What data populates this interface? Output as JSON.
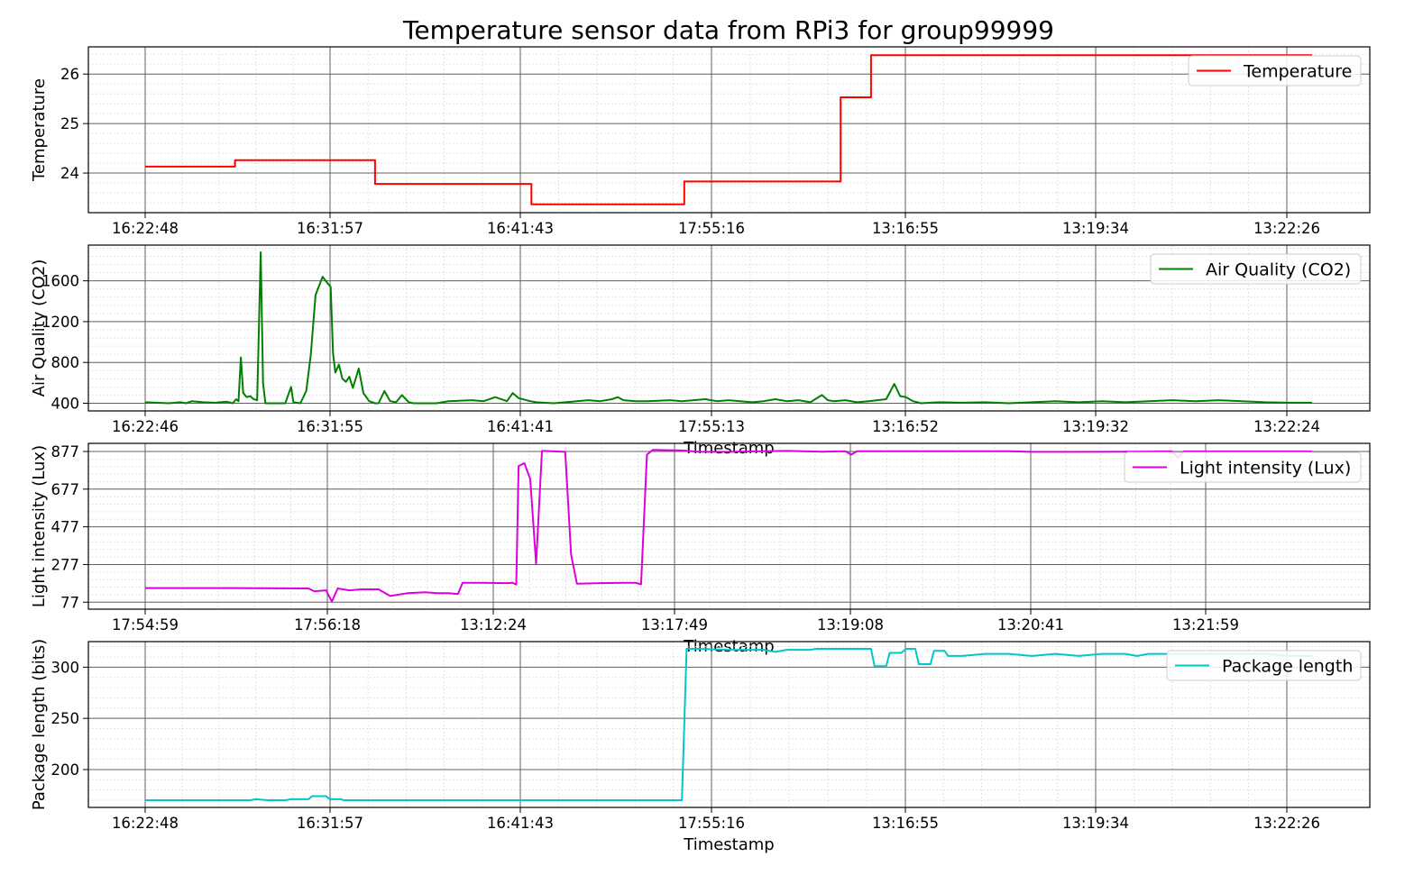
{
  "title": "Temperature sensor data from RPi3 for group99999",
  "chart_data": [
    {
      "type": "line",
      "ylabel": "Temperature",
      "xlabel": "",
      "color": "#ff0000",
      "series": [
        {
          "name": "Temperature"
        }
      ],
      "legend_position": "top-right",
      "grid": true,
      "x_ticks": [
        "16:22:48",
        "16:31:57",
        "16:41:43",
        "17:55:16",
        "13:16:55",
        "13:19:34",
        "13:22:26"
      ],
      "y_ticks": [
        "24",
        "25",
        "26"
      ],
      "ylim": [
        23.2,
        26.55
      ],
      "y_tick_values": [
        24,
        25,
        26
      ],
      "points": [
        [
          0,
          24.13
        ],
        [
          0.077,
          24.13
        ],
        [
          0.077,
          24.26
        ],
        [
          0.197,
          24.26
        ],
        [
          0.197,
          23.78
        ],
        [
          0.331,
          23.78
        ],
        [
          0.331,
          23.37
        ],
        [
          0.462,
          23.37
        ],
        [
          0.462,
          23.83
        ],
        [
          0.596,
          23.83
        ],
        [
          0.596,
          25.53
        ],
        [
          0.622,
          25.53
        ],
        [
          0.622,
          26.38
        ],
        [
          1,
          26.38
        ]
      ]
    },
    {
      "type": "line",
      "ylabel": "Air Quality (CO2)",
      "xlabel": "Timestamp",
      "color": "#008000",
      "series": [
        {
          "name": "Air Quality (CO2)"
        }
      ],
      "legend_position": "top-right",
      "grid": true,
      "x_ticks": [
        "16:22:46",
        "16:31:55",
        "16:41:41",
        "17:55:13",
        "13:16:52",
        "13:19:32",
        "13:22:24"
      ],
      "y_ticks": [
        "400",
        "800",
        "1200",
        "1600"
      ],
      "ylim": [
        325,
        1950
      ],
      "y_tick_values": [
        400,
        800,
        1200,
        1600
      ],
      "points": [
        [
          0,
          410
        ],
        [
          0.01,
          405
        ],
        [
          0.02,
          400
        ],
        [
          0.03,
          410
        ],
        [
          0.035,
          400
        ],
        [
          0.04,
          420
        ],
        [
          0.05,
          410
        ],
        [
          0.06,
          405
        ],
        [
          0.07,
          415
        ],
        [
          0.075,
          400
        ],
        [
          0.078,
          440
        ],
        [
          0.08,
          420
        ],
        [
          0.082,
          850
        ],
        [
          0.084,
          500
        ],
        [
          0.087,
          460
        ],
        [
          0.09,
          470
        ],
        [
          0.093,
          440
        ],
        [
          0.096,
          430
        ],
        [
          0.099,
          1880
        ],
        [
          0.101,
          600
        ],
        [
          0.103,
          400
        ],
        [
          0.11,
          400
        ],
        [
          0.12,
          400
        ],
        [
          0.125,
          560
        ],
        [
          0.127,
          410
        ],
        [
          0.133,
          400
        ],
        [
          0.138,
          520
        ],
        [
          0.142,
          880
        ],
        [
          0.146,
          1460
        ],
        [
          0.152,
          1640
        ],
        [
          0.156,
          1580
        ],
        [
          0.159,
          1540
        ],
        [
          0.161,
          890
        ],
        [
          0.163,
          700
        ],
        [
          0.166,
          780
        ],
        [
          0.169,
          640
        ],
        [
          0.172,
          610
        ],
        [
          0.175,
          660
        ],
        [
          0.178,
          550
        ],
        [
          0.183,
          740
        ],
        [
          0.187,
          500
        ],
        [
          0.192,
          420
        ],
        [
          0.197,
          400
        ],
        [
          0.2,
          400
        ],
        [
          0.205,
          520
        ],
        [
          0.21,
          420
        ],
        [
          0.215,
          410
        ],
        [
          0.22,
          480
        ],
        [
          0.226,
          410
        ],
        [
          0.23,
          400
        ],
        [
          0.25,
          400
        ],
        [
          0.26,
          420
        ],
        [
          0.28,
          430
        ],
        [
          0.29,
          420
        ],
        [
          0.3,
          460
        ],
        [
          0.31,
          420
        ],
        [
          0.315,
          500
        ],
        [
          0.32,
          450
        ],
        [
          0.33,
          420
        ],
        [
          0.335,
          410
        ],
        [
          0.35,
          400
        ],
        [
          0.36,
          410
        ],
        [
          0.38,
          430
        ],
        [
          0.39,
          420
        ],
        [
          0.4,
          440
        ],
        [
          0.405,
          460
        ],
        [
          0.41,
          430
        ],
        [
          0.42,
          420
        ],
        [
          0.43,
          420
        ],
        [
          0.45,
          430
        ],
        [
          0.46,
          420
        ],
        [
          0.47,
          430
        ],
        [
          0.48,
          440
        ],
        [
          0.49,
          420
        ],
        [
          0.5,
          430
        ],
        [
          0.51,
          420
        ],
        [
          0.52,
          410
        ],
        [
          0.53,
          420
        ],
        [
          0.54,
          440
        ],
        [
          0.55,
          420
        ],
        [
          0.56,
          430
        ],
        [
          0.57,
          410
        ],
        [
          0.58,
          480
        ],
        [
          0.585,
          430
        ],
        [
          0.59,
          420
        ],
        [
          0.6,
          430
        ],
        [
          0.61,
          410
        ],
        [
          0.62,
          420
        ],
        [
          0.635,
          440
        ],
        [
          0.642,
          590
        ],
        [
          0.647,
          470
        ],
        [
          0.652,
          460
        ],
        [
          0.658,
          420
        ],
        [
          0.665,
          400
        ],
        [
          0.68,
          410
        ],
        [
          0.7,
          405
        ],
        [
          0.72,
          410
        ],
        [
          0.74,
          400
        ],
        [
          0.76,
          410
        ],
        [
          0.78,
          420
        ],
        [
          0.8,
          410
        ],
        [
          0.82,
          420
        ],
        [
          0.84,
          410
        ],
        [
          0.86,
          420
        ],
        [
          0.88,
          430
        ],
        [
          0.9,
          420
        ],
        [
          0.92,
          430
        ],
        [
          0.94,
          420
        ],
        [
          0.96,
          410
        ],
        [
          0.98,
          405
        ],
        [
          1,
          405
        ]
      ]
    },
    {
      "type": "line",
      "ylabel": "Light intensity (Lux)",
      "xlabel": "Timestamp",
      "color": "#dd00dd",
      "series": [
        {
          "name": "Light intensity (Lux)"
        }
      ],
      "legend_position": "top-right",
      "grid": true,
      "x_ticks": [
        "17:54:59",
        "17:56:18",
        "13:12:24",
        "13:17:49",
        "13:19:08",
        "13:20:41",
        "13:21:59"
      ],
      "y_ticks": [
        "77",
        "277",
        "477",
        "677",
        "877"
      ],
      "ylim": [
        40,
        920
      ],
      "y_tick_values": [
        77,
        277,
        477,
        677,
        877
      ],
      "points": [
        [
          0,
          152
        ],
        [
          0.07,
          152
        ],
        [
          0.14,
          150
        ],
        [
          0.145,
          135
        ],
        [
          0.155,
          140
        ],
        [
          0.16,
          80
        ],
        [
          0.165,
          150
        ],
        [
          0.175,
          140
        ],
        [
          0.185,
          145
        ],
        [
          0.2,
          145
        ],
        [
          0.21,
          110
        ],
        [
          0.225,
          125
        ],
        [
          0.24,
          130
        ],
        [
          0.25,
          125
        ],
        [
          0.26,
          125
        ],
        [
          0.268,
          120
        ],
        [
          0.272,
          180
        ],
        [
          0.29,
          180
        ],
        [
          0.31,
          178
        ],
        [
          0.315,
          180
        ],
        [
          0.318,
          170
        ],
        [
          0.32,
          800
        ],
        [
          0.325,
          815
        ],
        [
          0.33,
          730
        ],
        [
          0.335,
          280
        ],
        [
          0.34,
          880
        ],
        [
          0.36,
          875
        ],
        [
          0.365,
          330
        ],
        [
          0.37,
          175
        ],
        [
          0.39,
          178
        ],
        [
          0.41,
          180
        ],
        [
          0.42,
          180
        ],
        [
          0.425,
          172
        ],
        [
          0.43,
          860
        ],
        [
          0.435,
          885
        ],
        [
          0.46,
          882
        ],
        [
          0.475,
          875
        ],
        [
          0.5,
          875
        ],
        [
          0.53,
          878
        ],
        [
          0.55,
          880
        ],
        [
          0.58,
          876
        ],
        [
          0.6,
          878
        ],
        [
          0.605,
          860
        ],
        [
          0.61,
          878
        ],
        [
          0.66,
          878
        ],
        [
          0.7,
          878
        ],
        [
          0.74,
          878
        ],
        [
          0.76,
          875
        ],
        [
          0.8,
          875
        ],
        [
          0.84,
          876
        ],
        [
          0.87,
          877
        ],
        [
          0.88,
          877
        ],
        [
          0.885,
          845
        ],
        [
          0.89,
          877
        ],
        [
          0.95,
          877
        ],
        [
          1,
          877
        ]
      ]
    },
    {
      "type": "line",
      "ylabel": "Package length (bits)",
      "xlabel": "Timestamp",
      "color": "#00c8c8",
      "series": [
        {
          "name": "Package length"
        }
      ],
      "legend_position": "top-right",
      "grid": true,
      "x_ticks": [
        "16:22:48",
        "16:31:57",
        "16:41:43",
        "17:55:16",
        "13:16:55",
        "13:19:34",
        "13:22:26"
      ],
      "y_ticks": [
        "200",
        "250",
        "300"
      ],
      "ylim": [
        163,
        325
      ],
      "y_tick_values": [
        200,
        250,
        300
      ],
      "points": [
        [
          0,
          170
        ],
        [
          0.09,
          170
        ],
        [
          0.095,
          171
        ],
        [
          0.105,
          170
        ],
        [
          0.12,
          170
        ],
        [
          0.125,
          171
        ],
        [
          0.14,
          171
        ],
        [
          0.143,
          174
        ],
        [
          0.155,
          174
        ],
        [
          0.158,
          171
        ],
        [
          0.168,
          171
        ],
        [
          0.17,
          170
        ],
        [
          0.3,
          170
        ],
        [
          0.46,
          170
        ],
        [
          0.464,
          318
        ],
        [
          0.475,
          318
        ],
        [
          0.5,
          317
        ],
        [
          0.53,
          317
        ],
        [
          0.54,
          315
        ],
        [
          0.55,
          317
        ],
        [
          0.57,
          317
        ],
        [
          0.575,
          318
        ],
        [
          0.6,
          318
        ],
        [
          0.622,
          318
        ],
        [
          0.625,
          301
        ],
        [
          0.635,
          301
        ],
        [
          0.638,
          314
        ],
        [
          0.648,
          314
        ],
        [
          0.652,
          318
        ],
        [
          0.66,
          318
        ],
        [
          0.663,
          303
        ],
        [
          0.673,
          303
        ],
        [
          0.676,
          316
        ],
        [
          0.685,
          316
        ],
        [
          0.688,
          311
        ],
        [
          0.7,
          311
        ],
        [
          0.72,
          313
        ],
        [
          0.74,
          313
        ],
        [
          0.76,
          311
        ],
        [
          0.78,
          313
        ],
        [
          0.8,
          311
        ],
        [
          0.82,
          313
        ],
        [
          0.84,
          313
        ],
        [
          0.85,
          311
        ],
        [
          0.86,
          313
        ],
        [
          0.88,
          313
        ],
        [
          0.9,
          313
        ],
        [
          0.92,
          313
        ],
        [
          0.94,
          313
        ],
        [
          0.96,
          313
        ],
        [
          0.98,
          311
        ],
        [
          1,
          311
        ]
      ]
    }
  ]
}
